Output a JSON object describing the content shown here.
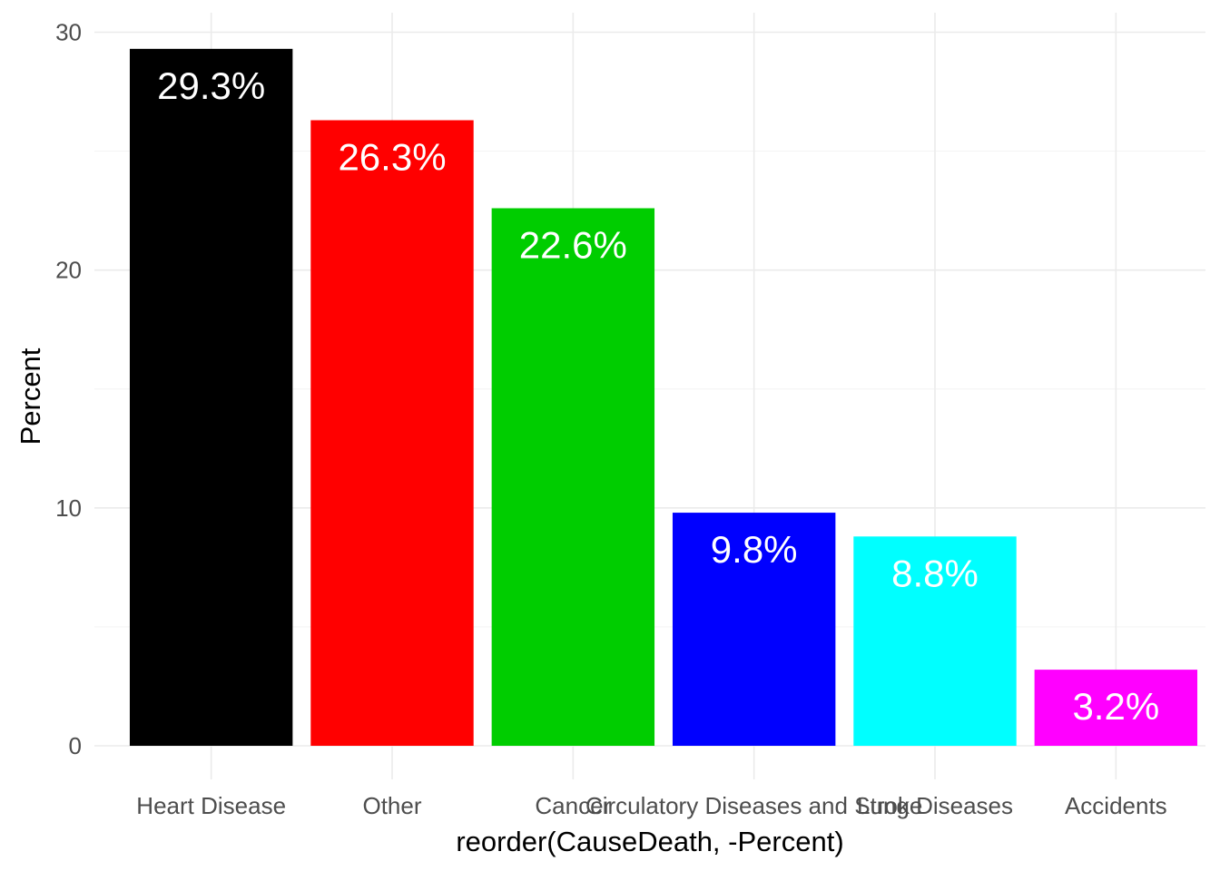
{
  "chart_data": {
    "type": "bar",
    "title": "",
    "xlabel": "reorder(CauseDeath, -Percent)",
    "ylabel": "Percent",
    "ylim": [
      0,
      30
    ],
    "yticks": [
      0,
      10,
      20,
      30
    ],
    "grid": true,
    "legend": "none",
    "categories": [
      "Heart Disease",
      "Other",
      "Cancer",
      "Circulatory Diseases and Stroke",
      "Lung Diseases",
      "Accidents"
    ],
    "values": [
      29.3,
      26.3,
      22.6,
      9.8,
      8.8,
      3.2
    ],
    "data_labels": [
      "29.3%",
      "26.3%",
      "22.6%",
      "9.8%",
      "8.8%",
      "3.2%"
    ],
    "colors": [
      "#000000",
      "#ff0000",
      "#00cd00",
      "#0000ff",
      "#00ffff",
      "#ff00ff"
    ]
  }
}
